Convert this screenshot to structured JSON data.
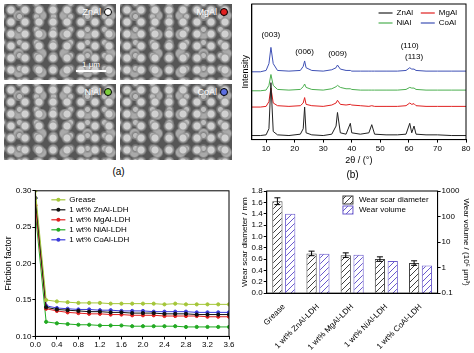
{
  "figure": {
    "title": "(a)",
    "scale_bar": "1 μm",
    "images": [
      {
        "label": "ZnAl",
        "color": "#ffffff"
      },
      {
        "label": "MgAl",
        "color": "#e02020"
      },
      {
        "label": "NiAl",
        "color": "#7ccd3a"
      },
      {
        "label": "CoAl",
        "color": "#5b6ee1"
      }
    ]
  },
  "chart_data": [
    {
      "type": "line",
      "title": "(b)",
      "x_label": "2θ / (°)",
      "y_label": "Intensity",
      "x": [
        5,
        8,
        10,
        11,
        11.7,
        12.5,
        14,
        18,
        22,
        23,
        23.5,
        24,
        26,
        30,
        33,
        34.5,
        35,
        36,
        38,
        39.5,
        40,
        43,
        46,
        47,
        48,
        52,
        56,
        59,
        60.3,
        61,
        61.8,
        62.5,
        66,
        70,
        75,
        80
      ],
      "series": [
        {
          "name": "ZnAl",
          "color": "#222222",
          "values": [
            3,
            3,
            3.5,
            8,
            42,
            6,
            3.5,
            3,
            4,
            8,
            24,
            5,
            3.5,
            3,
            4,
            10,
            20,
            5,
            4,
            12,
            5,
            4,
            5,
            11,
            4,
            3.5,
            3.5,
            4,
            12,
            5,
            10,
            4,
            3.5,
            3.5,
            3,
            3
          ]
        },
        {
          "name": "MgAl",
          "color": "#e02020",
          "values": [
            24,
            24,
            24.5,
            28,
            38,
            27,
            25,
            24.5,
            25,
            27,
            31,
            26,
            25,
            24.5,
            25.5,
            27,
            29,
            26,
            25.5,
            26,
            25.5,
            25,
            24.5,
            25,
            24.5,
            24.5,
            24.5,
            25,
            27,
            26,
            26.5,
            25,
            24.5,
            24.5,
            24.5,
            24.5
          ]
        },
        {
          "name": "NiAl",
          "color": "#4caf50",
          "values": [
            36,
            36,
            36.5,
            40,
            48,
            40,
            37,
            36.5,
            37,
            39,
            41,
            38.5,
            37,
            36.5,
            37.5,
            39,
            40,
            38.5,
            37.5,
            37.5,
            37,
            36.5,
            36.5,
            36.5,
            36.5,
            36.5,
            36.5,
            37,
            38.5,
            38,
            38,
            37,
            36.5,
            36.5,
            36.5,
            36.5
          ]
        },
        {
          "name": "CoAl",
          "color": "#3f51b5",
          "values": [
            50,
            50,
            51,
            56,
            68,
            56,
            51,
            50.5,
            51,
            54,
            58,
            53,
            51,
            50.5,
            51.5,
            53,
            55,
            52,
            51,
            51,
            50.5,
            50.5,
            50.5,
            50.5,
            50.5,
            50.5,
            50.5,
            51,
            53,
            52,
            52,
            51,
            50.5,
            50.5,
            50.5,
            50.5
          ]
        }
      ],
      "xlim": [
        5,
        80
      ],
      "xticks": [
        10,
        20,
        30,
        40,
        50,
        60,
        70,
        80
      ],
      "ylim": [
        0,
        100
      ],
      "tick_labels": "x",
      "grid": false,
      "legend": "upper right",
      "annotations": [
        {
          "text": "(003)",
          "x": 11.7,
          "y": 74
        },
        {
          "text": "(006)",
          "x": 23.5,
          "y": 62
        },
        {
          "text": "(009)",
          "x": 35,
          "y": 60
        },
        {
          "text": "(110)",
          "x": 60.3,
          "y": 66
        },
        {
          "text": "(113)",
          "x": 61.8,
          "y": 58
        }
      ]
    },
    {
      "type": "line",
      "y_label": "Friction factor",
      "x": [
        0,
        0.2,
        0.4,
        0.6,
        0.8,
        1,
        1.2,
        1.4,
        1.6,
        1.8,
        2,
        2.2,
        2.4,
        2.6,
        2.8,
        3,
        3.2,
        3.4,
        3.6
      ],
      "series": [
        {
          "name": "Grease",
          "color": "#a4c639",
          "marker": "circle",
          "values": [
            0.3,
            0.15,
            0.148,
            0.147,
            0.146,
            0.146,
            0.146,
            0.145,
            0.145,
            0.145,
            0.145,
            0.145,
            0.144,
            0.145,
            0.144,
            0.144,
            0.144,
            0.144,
            0.144
          ]
        },
        {
          "name": "1 wt% ZnAl-LDH",
          "color": "#111111",
          "marker": "circle",
          "values": [
            0.29,
            0.14,
            0.137,
            0.136,
            0.135,
            0.134,
            0.134,
            0.133,
            0.133,
            0.132,
            0.132,
            0.132,
            0.131,
            0.131,
            0.131,
            0.13,
            0.13,
            0.13,
            0.13
          ]
        },
        {
          "name": "1 wt% MgAl-LDH",
          "color": "#e02020",
          "marker": "circle",
          "values": [
            0.28,
            0.138,
            0.135,
            0.133,
            0.132,
            0.131,
            0.131,
            0.13,
            0.13,
            0.129,
            0.129,
            0.129,
            0.128,
            0.128,
            0.128,
            0.128,
            0.127,
            0.127,
            0.127
          ]
        },
        {
          "name": "1 wt% NiAl-LDH",
          "color": "#22aa22",
          "marker": "circle",
          "values": [
            0.27,
            0.12,
            0.118,
            0.117,
            0.116,
            0.116,
            0.115,
            0.115,
            0.115,
            0.114,
            0.114,
            0.114,
            0.114,
            0.114,
            0.113,
            0.113,
            0.113,
            0.113,
            0.113
          ]
        },
        {
          "name": "1 wt% CoAl-LDH",
          "color": "#3b3bd9",
          "marker": "circle",
          "values": [
            0.29,
            0.142,
            0.139,
            0.138,
            0.137,
            0.137,
            0.136,
            0.136,
            0.135,
            0.135,
            0.135,
            0.134,
            0.134,
            0.134,
            0.134,
            0.133,
            0.133,
            0.133,
            0.133
          ]
        }
      ],
      "xlim": [
        0,
        3.6
      ],
      "xticks": [
        {
          "value": 0,
          "label": "0.0"
        },
        0.4,
        0.8,
        1.2,
        1.6,
        {
          "value": 2,
          "label": "2.0"
        },
        2.4,
        2.8,
        3.2,
        3.6
      ],
      "ylim": [
        0.1,
        0.3
      ],
      "yticks": [
        {
          "value": 0.1,
          "label": "0.10"
        },
        0.15,
        {
          "value": 0.2,
          "label": "0.20"
        },
        0.25,
        {
          "value": 0.3,
          "label": "0.30"
        }
      ],
      "grid": false,
      "legend": "upper left"
    },
    {
      "type": "bar",
      "categories": [
        "Grease",
        "1 wt% ZnAl-LDH",
        "1 wt% MgAl-LDH",
        "1 wt% NiAl-LDH",
        "1 wt% CoAl-LDH"
      ],
      "series": [
        {
          "name": "Wear scar diameter",
          "color": "#404040",
          "axis": "y2",
          "values": [
            1.62,
            0.7,
            0.67,
            0.6,
            0.53
          ],
          "errors": [
            0.06,
            0.04,
            0.04,
            0.04,
            0.04
          ]
        },
        {
          "name": "Wear volume",
          "color": "#6a5acd",
          "values": [
            130,
            3.5,
            3.2,
            1.8,
            1.2
          ]
        }
      ],
      "y_label": "Wear volume / (10⁵ μm³)",
      "y2_label": "Wear scar diameter / mm",
      "ylim": [
        0.1,
        1000
      ],
      "yticks": [
        0.1,
        1,
        10,
        100,
        1000
      ],
      "log": "y",
      "y2lim": [
        0,
        1.8
      ],
      "y2ticks": [
        {
          "value": 0,
          "label": "0.0"
        },
        0.2,
        0.4,
        0.6,
        0.8,
        {
          "value": 1,
          "label": "1.0"
        },
        1.2,
        1.4,
        1.6,
        1.8
      ],
      "grid": false,
      "legend": "upper right"
    }
  ]
}
